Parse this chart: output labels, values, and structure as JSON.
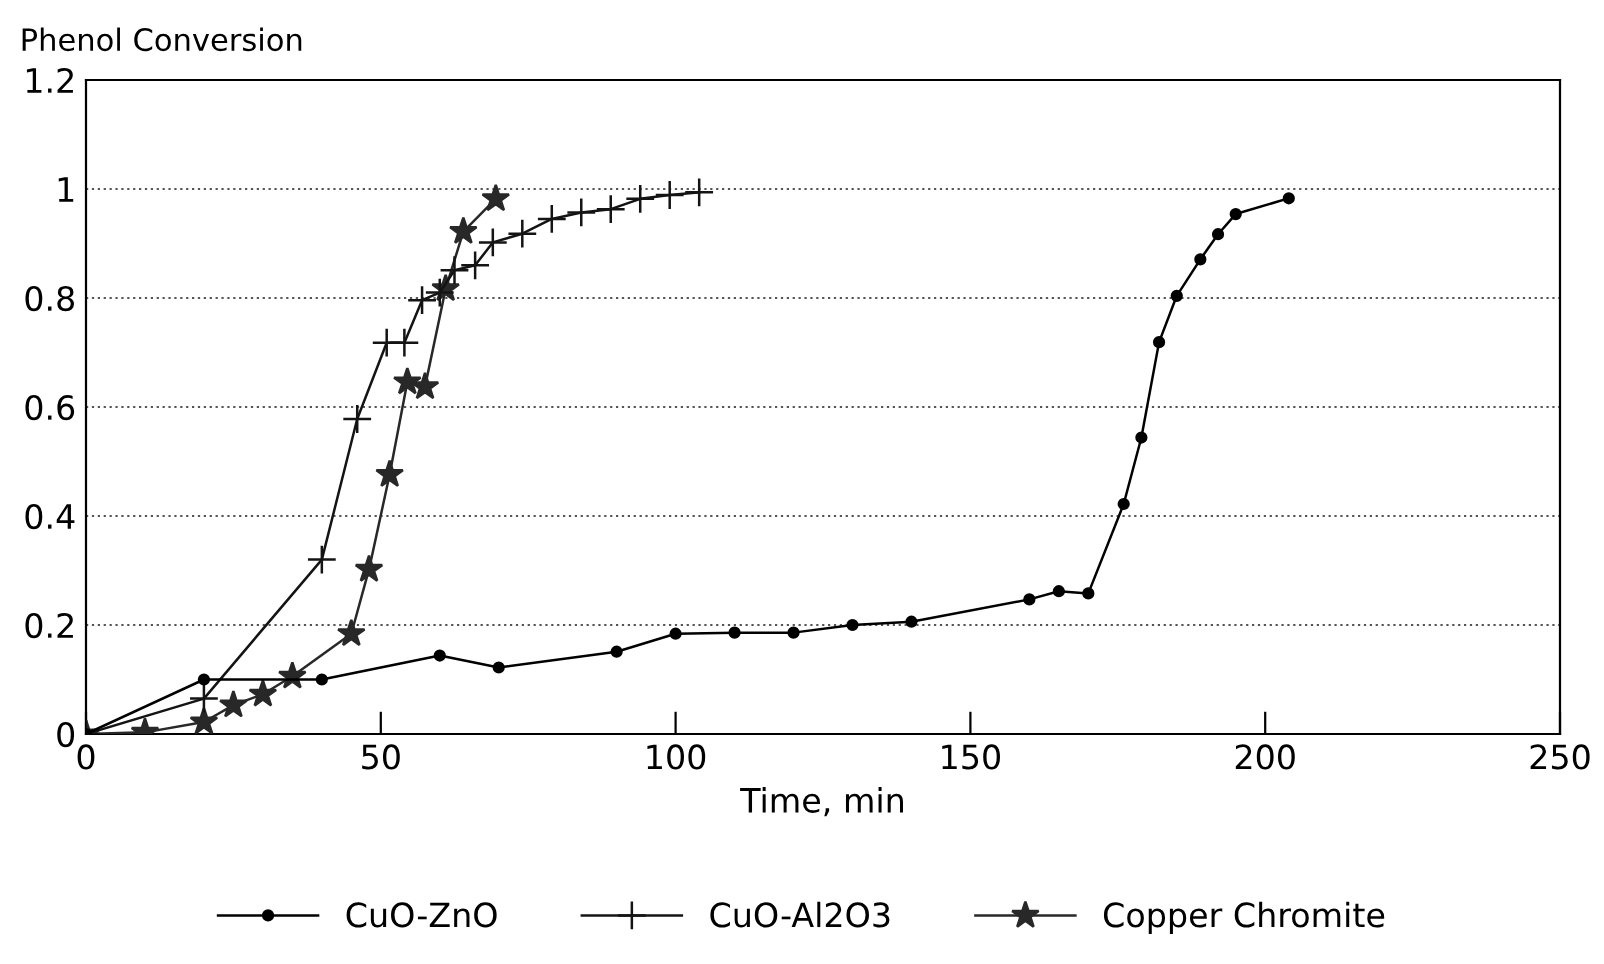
{
  "chart_data": {
    "type": "line",
    "ylabel": "Phenol Conversion",
    "xlabel": "Time, min",
    "xlim": [
      0,
      250
    ],
    "xticks": [
      0,
      50,
      100,
      150,
      200,
      250
    ],
    "ylim": [
      0,
      1.2
    ],
    "yticks": [
      0,
      0.2,
      0.4,
      0.6,
      0.8,
      1,
      1.2
    ],
    "grid": "y",
    "legend": "bottom",
    "series": [
      {
        "name": "CuO-ZnO",
        "color": "#000000",
        "marker": "circle",
        "x": [
          0,
          20,
          40,
          60,
          70,
          90,
          100,
          110,
          120,
          130,
          140,
          160,
          165,
          170,
          176,
          179,
          182,
          185,
          189,
          192,
          195,
          204
        ],
        "values": [
          0,
          0.1,
          0.1,
          0.144,
          0.122,
          0.151,
          0.184,
          0.186,
          0.186,
          0.2,
          0.206,
          0.247,
          0.262,
          0.258,
          0.422,
          0.544,
          0.719,
          0.804,
          0.871,
          0.917,
          0.954,
          0.983
        ]
      },
      {
        "name": "CuO-Al2O3",
        "color": "#141414",
        "marker": "cross",
        "x": [
          0,
          20,
          40,
          46,
          51,
          54,
          57,
          60,
          62.5,
          66,
          69,
          74,
          79,
          84,
          89,
          94,
          99,
          104
        ],
        "values": [
          0,
          0.065,
          0.32,
          0.578,
          0.718,
          0.718,
          0.796,
          0.81,
          0.851,
          0.86,
          0.902,
          0.918,
          0.945,
          0.957,
          0.963,
          0.982,
          0.989,
          0.994
        ]
      },
      {
        "name": "Copper Chromite",
        "color": "#282828",
        "marker": "star",
        "x": [
          0,
          10,
          20,
          25,
          30,
          35,
          45,
          48,
          51.5,
          54.5,
          57.5,
          61,
          64,
          69.5
        ],
        "values": [
          0,
          0.003,
          0.022,
          0.053,
          0.073,
          0.106,
          0.184,
          0.302,
          0.476,
          0.646,
          0.637,
          0.817,
          0.922,
          0.982
        ]
      }
    ]
  }
}
